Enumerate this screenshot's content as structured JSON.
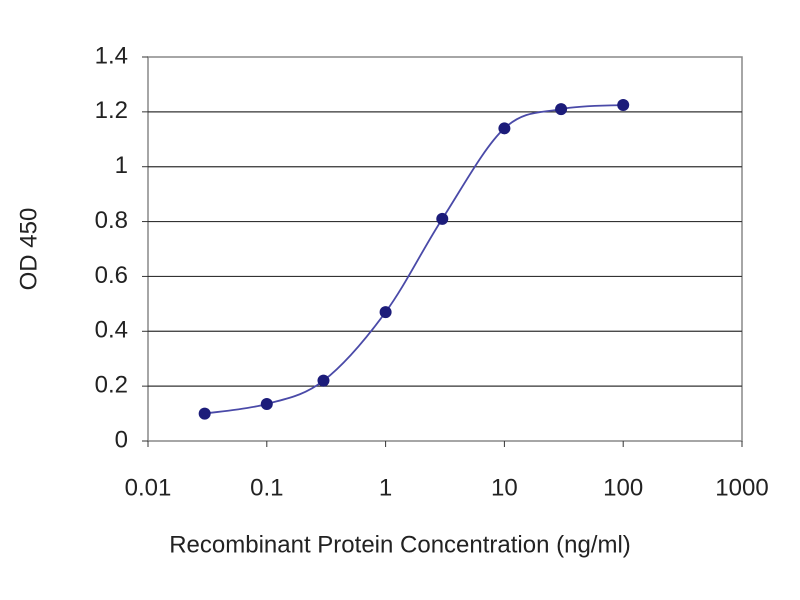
{
  "chart_data": {
    "type": "line",
    "x_label": "Recombinant Protein Concentration (ng/ml)",
    "y_label": "OD 450",
    "x": [
      0.03,
      0.1,
      0.3,
      1,
      3,
      10,
      30,
      100
    ],
    "series": [
      {
        "color": "#1c1c7a",
        "values": [
          0.1,
          0.135,
          0.22,
          0.47,
          0.81,
          1.14,
          1.21,
          1.225
        ]
      }
    ],
    "x_scale": "log",
    "xlim": [
      0.01,
      1000
    ],
    "xticks": [
      0.01,
      0.1,
      1,
      10,
      100,
      1000
    ],
    "ylim": [
      0,
      1.4
    ],
    "yticks": [
      0,
      0.2,
      0.4,
      0.6,
      0.8,
      1,
      1.2,
      1.4
    ],
    "grid": true
  }
}
